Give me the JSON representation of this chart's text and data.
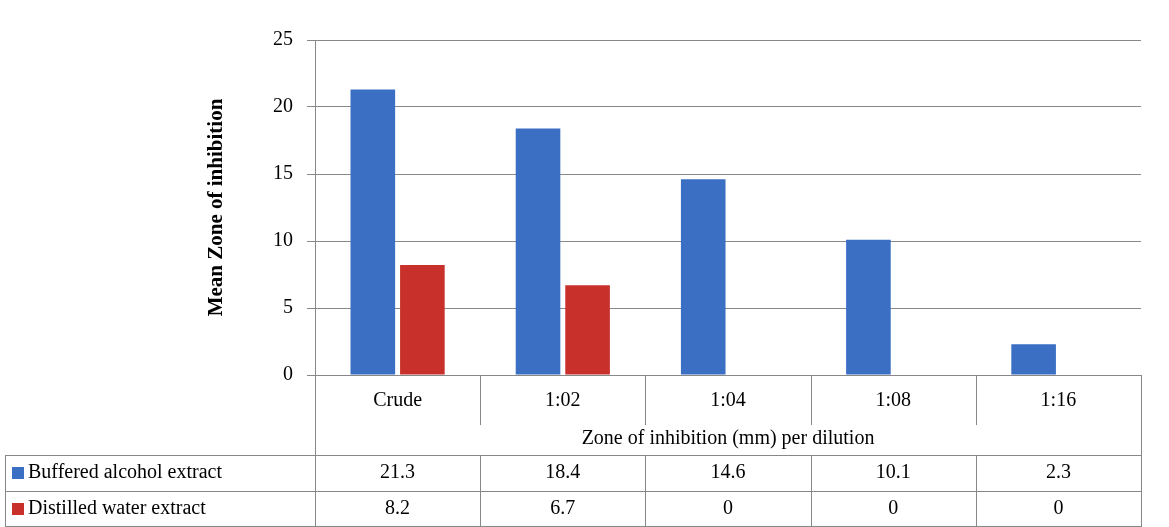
{
  "chart_data": {
    "type": "bar",
    "xlabel": "Zone of inhibition (mm) per dilution",
    "ylabel": "Mean Zone of inhibition",
    "categories": [
      "Crude",
      "1:02",
      "1:04",
      "1:08",
      "1:16"
    ],
    "series": [
      {
        "name": "Buffered alcohol extract",
        "color": "#3a6fc4",
        "values": [
          21.3,
          18.4,
          14.6,
          10.1,
          2.3
        ]
      },
      {
        "name": "Distilled water extract",
        "color": "#c8302c",
        "values": [
          8.2,
          6.7,
          0,
          0,
          0
        ]
      }
    ],
    "ylim": [
      0,
      25
    ],
    "yticks": [
      0,
      5,
      10,
      15,
      20,
      25
    ],
    "grid": "y",
    "legend": "bottom",
    "data_labels": true
  }
}
